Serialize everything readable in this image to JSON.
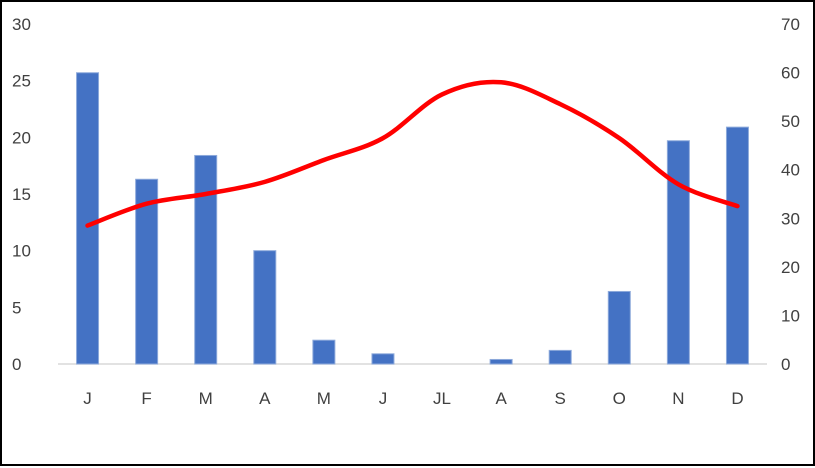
{
  "chart_data": {
    "type": "bar",
    "categories": [
      "J",
      "F",
      "M",
      "A",
      "M",
      "J",
      "JL",
      "A",
      "S",
      "O",
      "N",
      "D"
    ],
    "series": [
      {
        "type": "bar",
        "axis": "left",
        "color": "#4472C4",
        "values": [
          25.7,
          16.3,
          18.4,
          10.0,
          2.1,
          0.9,
          0.0,
          0.4,
          1.2,
          6.4,
          19.7,
          20.9
        ]
      },
      {
        "type": "line",
        "axis": "right",
        "color": "#FF0000",
        "values": [
          28.5,
          33.0,
          35.0,
          37.5,
          42.0,
          46.5,
          55.5,
          58.0,
          53.5,
          46.5,
          37.0,
          32.5
        ]
      }
    ],
    "y_left": {
      "ylim": [
        0,
        30
      ],
      "ticks": [
        0,
        5,
        10,
        15,
        20,
        25,
        30
      ]
    },
    "y_right": {
      "ylim": [
        0,
        70
      ],
      "ticks": [
        0,
        10,
        20,
        30,
        40,
        50,
        60,
        70
      ]
    },
    "title": "",
    "xlabel": "",
    "ylabel": "",
    "grid": false,
    "legend": "none"
  }
}
